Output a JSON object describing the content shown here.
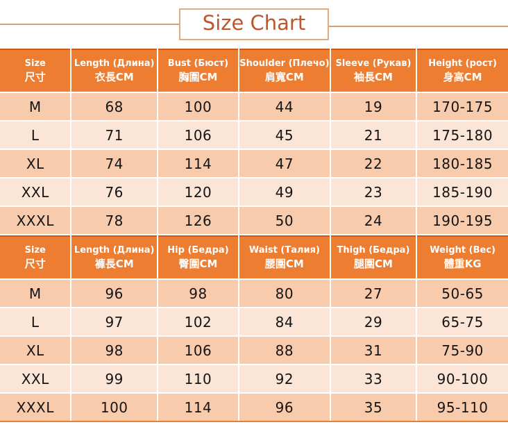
{
  "title": "Size Chart",
  "colors": {
    "header_bg": "#ED7D31",
    "row_dark": "#F8CBAD",
    "row_light": "#FBE5D6",
    "accent_border": "#C9591B",
    "title_text": "#C0552B",
    "title_box_border": "#E3AC80",
    "banner_line": "#D99F74"
  },
  "chart_data": [
    {
      "type": "table",
      "title": "Size Chart",
      "headers": [
        {
          "en": "Size",
          "cjk": "尺寸"
        },
        {
          "en": "Length (Длина)",
          "cjk": "衣長CM"
        },
        {
          "en": "Bust (Бюст)",
          "cjk": "胸圍CM"
        },
        {
          "en": "Shoulder (Плечо)",
          "cjk": "肩寬CM"
        },
        {
          "en": "Sleeve (Рукав)",
          "cjk": "袖長CM"
        },
        {
          "en": "Height (рост)",
          "cjk": "身高CM"
        }
      ],
      "rows": [
        [
          "M",
          "68",
          "100",
          "44",
          "19",
          "170-175"
        ],
        [
          "L",
          "71",
          "106",
          "45",
          "21",
          "175-180"
        ],
        [
          "XL",
          "74",
          "114",
          "47",
          "22",
          "180-185"
        ],
        [
          "XXL",
          "76",
          "120",
          "49",
          "23",
          "185-190"
        ],
        [
          "XXXL",
          "78",
          "126",
          "50",
          "24",
          "190-195"
        ]
      ]
    },
    {
      "type": "table",
      "headers": [
        {
          "en": "Size",
          "cjk": "尺寸"
        },
        {
          "en": "Length (Длина)",
          "cjk": "褲長CM"
        },
        {
          "en": "Hip (Бедра)",
          "cjk": "臀圍CM"
        },
        {
          "en": "Waist (Талия)",
          "cjk": "腰圍CM"
        },
        {
          "en": "Thigh (Бедра)",
          "cjk": "腿圍CM"
        },
        {
          "en": "Weight (Вес)",
          "cjk": "體重KG"
        }
      ],
      "rows": [
        [
          "M",
          "96",
          "98",
          "80",
          "27",
          "50-65"
        ],
        [
          "L",
          "97",
          "102",
          "84",
          "29",
          "65-75"
        ],
        [
          "XL",
          "98",
          "106",
          "88",
          "31",
          "75-90"
        ],
        [
          "XXL",
          "99",
          "110",
          "92",
          "33",
          "90-100"
        ],
        [
          "XXXL",
          "100",
          "114",
          "96",
          "35",
          "95-110"
        ]
      ]
    }
  ]
}
